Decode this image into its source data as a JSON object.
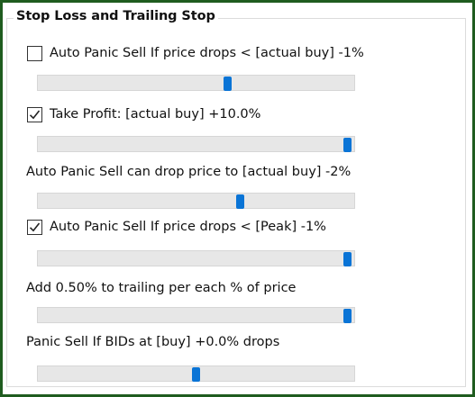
{
  "group": {
    "title": "Stop Loss and Trailing Stop"
  },
  "accent_color": "#0a74d6",
  "settings": [
    {
      "label": "Auto Panic Sell If price drops < [actual buy] -1%",
      "has_checkbox": true,
      "checked": false,
      "slider_fraction": 0.6
    },
    {
      "label": "Take Profit: [actual buy] +10.0%",
      "has_checkbox": true,
      "checked": true,
      "slider_fraction": 0.98
    },
    {
      "label": "Auto Panic Sell can drop price to [actual buy] -2%",
      "has_checkbox": false,
      "slider_fraction": 0.64
    },
    {
      "label": "Auto Panic Sell If price drops < [Peak] -1%",
      "has_checkbox": true,
      "checked": true,
      "slider_fraction": 0.98
    },
    {
      "label": "Add 0.50% to trailing per each % of price",
      "has_checkbox": false,
      "slider_fraction": 0.98
    },
    {
      "label": "Panic Sell If BIDs  at [buy] +0.0% drops",
      "has_checkbox": false,
      "slider_fraction": 0.5
    }
  ]
}
